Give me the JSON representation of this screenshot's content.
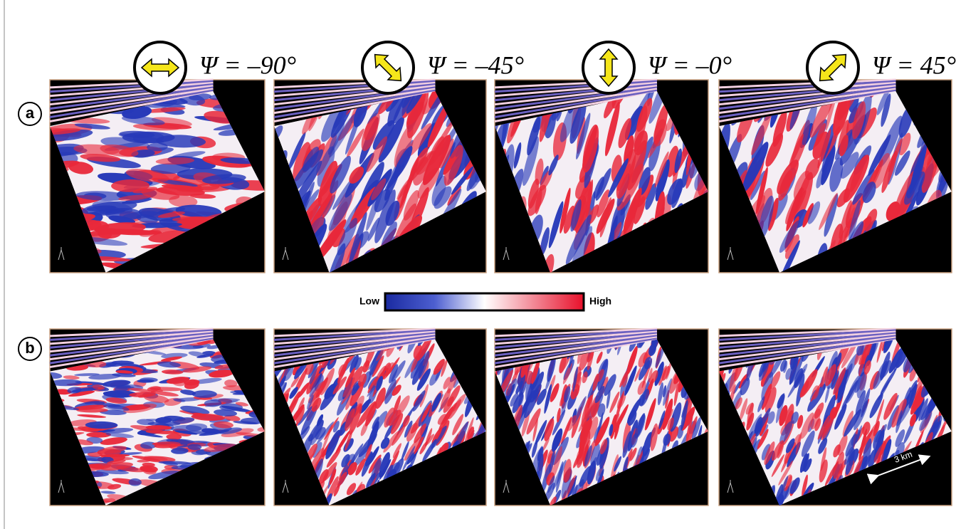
{
  "headers": [
    {
      "label": "Ψ = –90°"
    },
    {
      "label": "Ψ = –45°"
    },
    {
      "label": "Ψ = –0°"
    },
    {
      "label": "Ψ = 45°"
    }
  ],
  "rows": [
    {
      "label": "a"
    },
    {
      "label": "b"
    }
  ],
  "colorbar": {
    "low": "Low",
    "high": "High"
  },
  "scale_bar": "3 km"
}
